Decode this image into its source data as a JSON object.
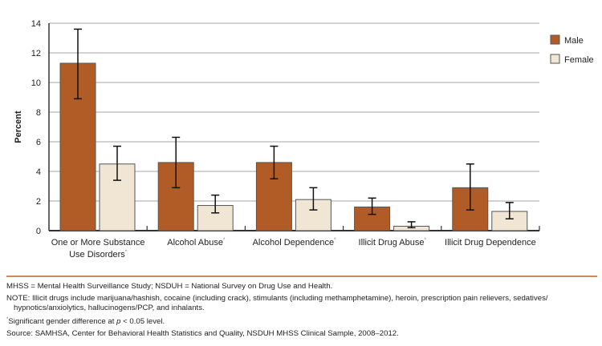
{
  "chart_data": {
    "type": "bar",
    "ylabel": "Percent",
    "ylim": [
      0,
      14
    ],
    "yticks": [
      0,
      2,
      4,
      6,
      8,
      10,
      12,
      14
    ],
    "grid": true,
    "legend_placement": "right",
    "categories": [
      "One or More Substance Use Disorders",
      "Alcohol Abuse",
      "Alcohol Dependence",
      "Illicit Drug Abuse",
      "Illicit Drug Dependence"
    ],
    "category_lines": [
      [
        "One or More Substance",
        "Use Disorders"
      ],
      [
        "Alcohol Abuse"
      ],
      [
        "Alcohol Dependence"
      ],
      [
        "Illicit Drug Abuse"
      ],
      [
        "Illicit Drug Dependence"
      ]
    ],
    "significant": [
      true,
      true,
      true,
      true,
      false
    ],
    "series": [
      {
        "name": "Male",
        "color": "#b15c26",
        "values": [
          11.3,
          4.6,
          4.6,
          1.6,
          2.9
        ],
        "ci_low": [
          8.9,
          2.9,
          3.5,
          1.1,
          1.4
        ],
        "ci_high": [
          13.6,
          6.3,
          5.7,
          2.2,
          4.5
        ]
      },
      {
        "name": "Female",
        "color": "#f1e6d4",
        "values": [
          4.5,
          1.7,
          2.1,
          0.3,
          1.3
        ],
        "ci_low": [
          3.4,
          1.2,
          1.4,
          0.2,
          0.8
        ],
        "ci_high": [
          5.7,
          2.4,
          2.9,
          0.6,
          1.9
        ]
      }
    ]
  },
  "notes": {
    "abbrev": "MHSS = Mental Health Surveillance Study; NSDUH = National Survey on Drug Use and Health.",
    "note": "NOTE: Illicit drugs include marijuana/hashish, cocaine (including crack), stimulants (including methamphetamine), heroin, prescription pain relievers, sedatives/ hypnotics/anxiolytics, hallucinogens/PCP, and inhalants.",
    "asterisk": "*",
    "sig_pre": "Significant gender difference at ",
    "sig_p": "p",
    "sig_post": " < 0.05 level.",
    "source": "Source: SAMHSA, Center for Behavioral Health Statistics and Quality, NSDUH MHSS Clinical Sample, 2008–2012."
  }
}
